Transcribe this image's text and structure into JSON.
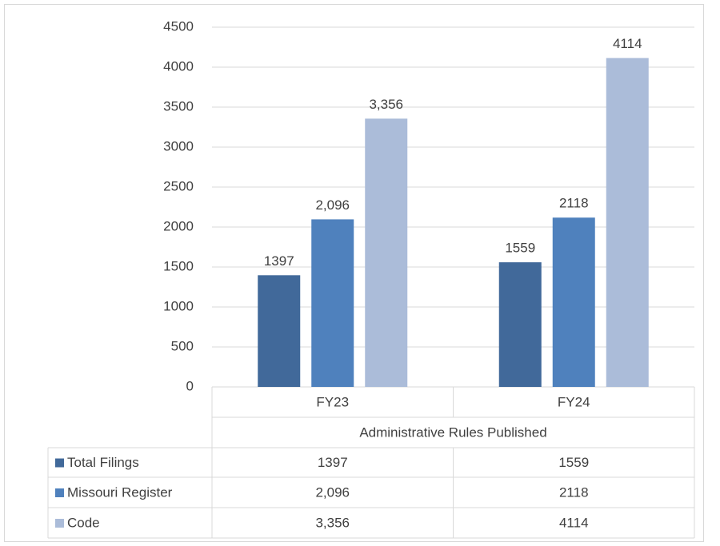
{
  "chart_data": {
    "type": "bar",
    "xlabel": "Administrative Rules Published",
    "categories": [
      "FY23",
      "FY24"
    ],
    "series": [
      {
        "name": "Total Filings",
        "color": "#41699a",
        "values": [
          1397,
          1559
        ]
      },
      {
        "name": "Missouri Register",
        "color": "#4f81bd",
        "values": [
          2096,
          2118
        ],
        "value_labels": [
          "2,096",
          "2118"
        ]
      },
      {
        "name": "Code",
        "color": "#abbcd9",
        "values": [
          3356,
          4114
        ],
        "value_labels": [
          "3,356",
          "4114"
        ]
      }
    ],
    "ylim": [
      0,
      4500
    ],
    "yticks": [
      0,
      500,
      1000,
      1500,
      2000,
      2500,
      3000,
      3500,
      4000,
      4500
    ],
    "grid": true,
    "data_table": true
  }
}
